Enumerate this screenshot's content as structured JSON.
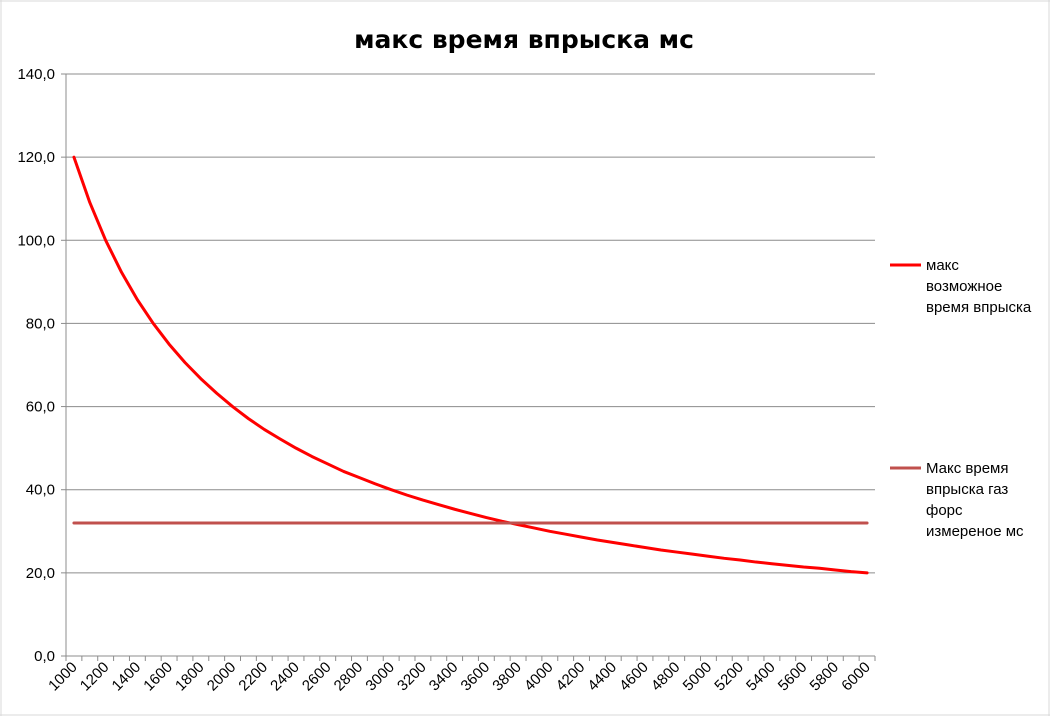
{
  "chart_data": {
    "type": "line",
    "title": "макс время впрыска мс",
    "xlabel": "",
    "ylabel": "",
    "categories": [
      1000,
      1100,
      1200,
      1300,
      1400,
      1500,
      1600,
      1700,
      1800,
      1900,
      2000,
      2100,
      2200,
      2300,
      2400,
      2500,
      2600,
      2700,
      2800,
      2900,
      3000,
      3100,
      3200,
      3300,
      3400,
      3500,
      3600,
      3700,
      3800,
      3900,
      4000,
      4100,
      4200,
      4300,
      4400,
      4500,
      4600,
      4700,
      4800,
      4900,
      5000,
      5100,
      5200,
      5300,
      5400,
      5500,
      5600,
      5700,
      5800,
      5900,
      6000
    ],
    "x_tick_labels": [
      "1000",
      "1200",
      "1400",
      "1600",
      "1800",
      "2000",
      "2200",
      "2400",
      "2600",
      "2800",
      "3000",
      "3200",
      "3400",
      "3600",
      "3800",
      "4000",
      "4200",
      "4400",
      "4600",
      "4800",
      "5000",
      "5200",
      "5400",
      "5600",
      "5800",
      "6000"
    ],
    "y_tick_labels": [
      "0,0",
      "20,0",
      "40,0",
      "60,0",
      "80,0",
      "100,0",
      "120,0",
      "140,0"
    ],
    "ylim": [
      0,
      140
    ],
    "y_step": 20,
    "grid": true,
    "legend_position": "right",
    "series": [
      {
        "name": "макс возможное время впрыска",
        "legend_lines": [
          "макс",
          "возможное",
          "время впрыска"
        ],
        "color": "#ff0000",
        "values": [
          120.0,
          109.1,
          100.0,
          92.3,
          85.7,
          80.0,
          75.0,
          70.6,
          66.7,
          63.2,
          60.0,
          57.1,
          54.5,
          52.2,
          50.0,
          48.0,
          46.2,
          44.4,
          42.9,
          41.4,
          40.0,
          38.7,
          37.5,
          36.4,
          35.3,
          34.3,
          33.3,
          32.4,
          31.6,
          30.8,
          30.0,
          29.3,
          28.6,
          27.9,
          27.3,
          26.7,
          26.1,
          25.5,
          25.0,
          24.5,
          24.0,
          23.5,
          23.1,
          22.6,
          22.2,
          21.8,
          21.4,
          21.1,
          20.7,
          20.3,
          20.0
        ]
      },
      {
        "name": "Макс время впрыска газ форс измереное мс",
        "legend_lines": [
          "Макс время",
          "впрыска газ",
          "форс",
          "измереное мс"
        ],
        "color": "#c0504d",
        "values": [
          32,
          32,
          32,
          32,
          32,
          32,
          32,
          32,
          32,
          32,
          32,
          32,
          32,
          32,
          32,
          32,
          32,
          32,
          32,
          32,
          32,
          32,
          32,
          32,
          32,
          32,
          32,
          32,
          32,
          32,
          32,
          32,
          32,
          32,
          32,
          32,
          32,
          32,
          32,
          32,
          32,
          32,
          32,
          32,
          32,
          32,
          32,
          32,
          32,
          32,
          32
        ]
      }
    ]
  }
}
